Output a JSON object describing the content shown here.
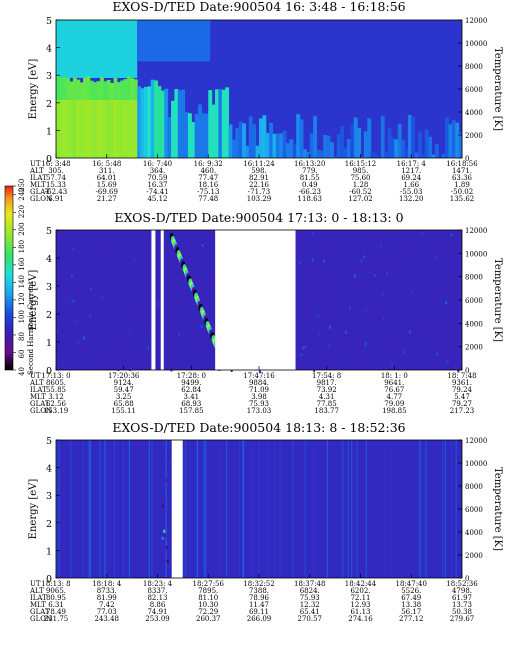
{
  "chart_data": [
    {
      "type": "heatmap",
      "title": "EXOS-D/TED   Date:900504  16: 3:48 - 16:18:56",
      "ylabel": "Energy [eV]",
      "ylabel_right": "Temperature [K]",
      "ylim": [
        0,
        5
      ],
      "ylim_right": [
        0,
        12000
      ],
      "yticks": [
        "0",
        "1",
        "2",
        "3",
        "4",
        "5"
      ],
      "yticks_right": [
        "0",
        "2000",
        "4000",
        "6000",
        "8000",
        "10000",
        "12000"
      ],
      "grid": false,
      "x": [
        "16: 3:48",
        "16: 5:48",
        "16: 7:40",
        "16: 9:32",
        "16:11:24",
        "16:13:20",
        "16:15:12",
        "16:17: 4",
        "16:18:56"
      ],
      "rows": [
        {
          "label": "UT",
          "values": [
            "16: 3:48",
            "16: 5:48",
            "16: 7:40",
            "16: 9:32",
            "16:11:24",
            "16:13:20",
            "16:15:12",
            "16:17: 4",
            "16:18:56"
          ]
        },
        {
          "label": "ALT",
          "values": [
            "305.",
            "311.",
            "364.",
            "460.",
            "598.",
            "779.",
            "985.",
            "1217.",
            "1471."
          ]
        },
        {
          "label": "ILAT",
          "values": [
            "57.74",
            "64.01",
            "70.59",
            "77.47",
            "82.91",
            "81.55",
            "75.60",
            "69.24",
            "63.36"
          ]
        },
        {
          "label": "MLT",
          "values": [
            "15.33",
            "15.69",
            "16.37",
            "18.16",
            "22.16",
            "0.49",
            "1.28",
            "1.66",
            "1.89"
          ]
        },
        {
          "label": "GLAT",
          "values": [
            "-62.43",
            "-69.69",
            "-74.41",
            "-75.13",
            "-71.73",
            "-66.23",
            "-60.52",
            "-55.03",
            "-50.02"
          ]
        },
        {
          "label": "GLON",
          "values": [
            "6.91",
            "21.27",
            "45.12",
            "77.48",
            "103.29",
            "118.63",
            "127.02",
            "132.20",
            "135.62"
          ]
        }
      ],
      "segments": [
        {
          "t": [
            0,
            0.09
          ],
          "level": 150,
          "top": 2.9
        },
        {
          "t": [
            0.09,
            0.2
          ],
          "level": 140,
          "top": 2.8
        },
        {
          "t": [
            0.2,
            0.27
          ],
          "level": 120,
          "top": 2.3
        },
        {
          "t": [
            0.27,
            0.42
          ],
          "level": 80,
          "top": 1.4
        },
        {
          "t": [
            0.42,
            0.54
          ],
          "level": 90,
          "top": 0.6
        },
        {
          "t": [
            0.54,
            0.64
          ],
          "level": 60,
          "top": 0.4
        }
      ]
    },
    {
      "type": "heatmap",
      "title": "EXOS-D/TED   Date:900504  17:13: 0 - 18:13: 0",
      "ylabel": "Energy [eV]",
      "ylabel_right": "Temperature [K]",
      "ylim": [
        0,
        5
      ],
      "ylim_right": [
        0,
        12000
      ],
      "yticks": [
        "0",
        "1",
        "2",
        "3",
        "4",
        "5"
      ],
      "yticks_right": [
        "0",
        "2000",
        "4000",
        "6000",
        "8000",
        "10000",
        "12000"
      ],
      "grid": false,
      "x": [
        "17:13: 0",
        "17:20:36",
        "17:28: 0",
        "17:47:16",
        "17:54: 8",
        "18: 1: 0",
        "18: 7:48"
      ],
      "rows": [
        {
          "label": "UT",
          "values": [
            "17:13: 0",
            "17:20:36",
            "17:28: 0",
            "17:47:16",
            "17:54: 8",
            "18: 1: 0",
            "18: 7:48"
          ]
        },
        {
          "label": "ALT",
          "values": [
            "8605.",
            "9124.",
            "9499.",
            "9884.",
            "9817.",
            "9641.",
            "9361."
          ]
        },
        {
          "label": "ILAT",
          "values": [
            "55.85",
            "59.47",
            "62.84",
            "71.09",
            "73.92",
            "76.67",
            "79.24"
          ]
        },
        {
          "label": "MLT",
          "values": [
            "3.12",
            "3.25",
            "3.41",
            "3.98",
            "4.31",
            "4.77",
            "5.47"
          ]
        },
        {
          "label": "GLAT",
          "values": [
            "62.56",
            "65.88",
            "68.93",
            "75.93",
            "77.85",
            "79.09",
            "79.27"
          ]
        },
        {
          "label": "GLON",
          "values": [
            "153.19",
            "155.11",
            "157.85",
            "173.03",
            "183.77",
            "198.85",
            "217.23"
          ]
        }
      ],
      "data_gap": [
        "17:29",
        "17:47"
      ]
    },
    {
      "type": "heatmap",
      "title": "EXOS-D/TED   Date:900504  18:13: 8 - 18:52:36",
      "ylabel": "Energy [eV]",
      "ylabel_right": "Temperature [K]",
      "ylim": [
        0,
        5
      ],
      "ylim_right": [
        0,
        12000
      ],
      "yticks": [
        "0",
        "1",
        "2",
        "3",
        "4",
        "5"
      ],
      "yticks_right": [
        "0",
        "2000",
        "4000",
        "6000",
        "8000",
        "10000",
        "12000"
      ],
      "grid": false,
      "x": [
        "18:13: 8",
        "18:18: 4",
        "18:23: 4",
        "18:27:56",
        "18:32:52",
        "18:37:48",
        "18:42:44",
        "18:47:40",
        "18:52:36"
      ],
      "rows": [
        {
          "label": "UT",
          "values": [
            "18:13: 8",
            "18:18: 4",
            "18:23: 4",
            "18:27:56",
            "18:32:52",
            "18:37:48",
            "18:42:44",
            "18:47:40",
            "18:52:36"
          ]
        },
        {
          "label": "ALT",
          "values": [
            "9065.",
            "8733.",
            "8337.",
            "7895.",
            "7388.",
            "6824.",
            "6202.",
            "5526.",
            "4798."
          ]
        },
        {
          "label": "ILAT",
          "values": [
            "80.95",
            "81.99",
            "82.13",
            "81.10",
            "78.96",
            "75.93",
            "72.11",
            "67.49",
            "61.97"
          ]
        },
        {
          "label": "MLT",
          "values": [
            "6.31",
            "7.42",
            "8.86",
            "10.30",
            "11.47",
            "12.32",
            "12.93",
            "13.38",
            "13.73"
          ]
        },
        {
          "label": "GLAT",
          "values": [
            "78.49",
            "77.03",
            "74.91",
            "72.29",
            "69.11",
            "65.41",
            "61.13",
            "56.17",
            "50.38"
          ]
        },
        {
          "label": "GLON",
          "values": [
            "231.75",
            "243.48",
            "253.09",
            "260.37",
            "266.09",
            "270.57",
            "274.16",
            "277.12",
            "279.67"
          ]
        }
      ],
      "data_gap": [
        "18:25",
        "18:27"
      ]
    }
  ],
  "colorbar": {
    "label": "Second Harmonic Current",
    "ticks": [
      "40",
      "60",
      "80",
      "100",
      "120",
      "140",
      "160",
      "180",
      "200",
      "220",
      "240",
      "250"
    ],
    "colors": [
      "#000000",
      "#6a0f8f",
      "#3a1fb5",
      "#1d46e0",
      "#1f7bf0",
      "#19b9f0",
      "#1ee0d8",
      "#2fe46a",
      "#9ae82a",
      "#ece81c",
      "#f59a1a",
      "#e4231a"
    ]
  }
}
